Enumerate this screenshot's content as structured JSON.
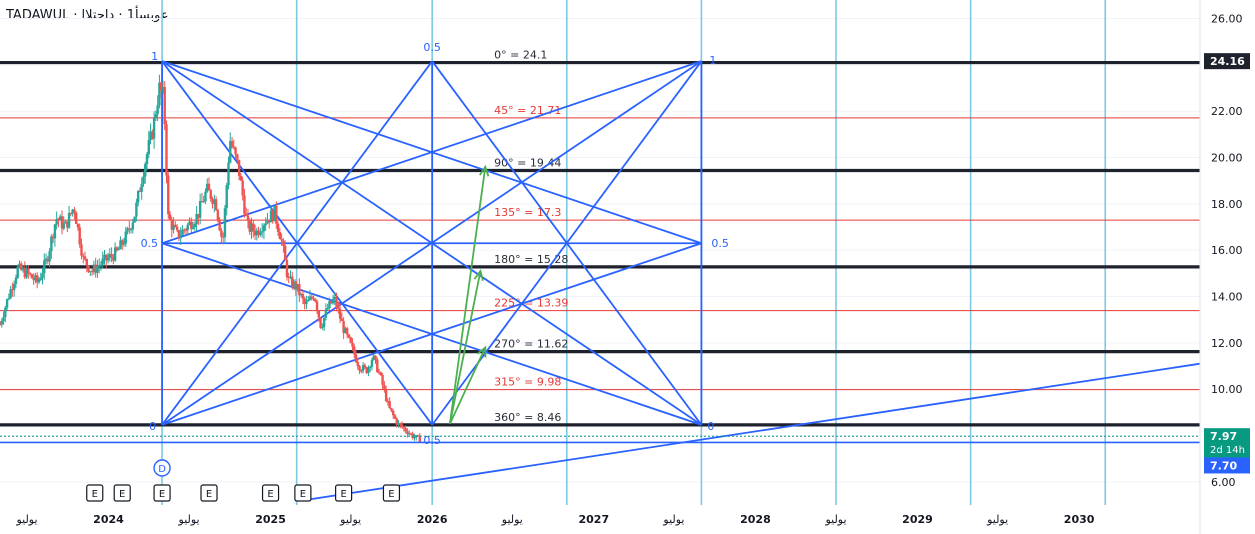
{
  "header": {
    "symbol": "TADAWUL",
    "separator": "·",
    "name_text": "عوبسأ1 · داحتلاا"
  },
  "colors": {
    "up": "#26a69a",
    "down": "#ef5350",
    "gann": "#2962ff",
    "fan": "#4caf50",
    "cycle": "#7ec8e3",
    "level_black": "#1e222d",
    "level_red": "#e53935",
    "last_price_bg": "#2962ff",
    "current_price_bg": "#089981"
  },
  "chart_data": {
    "type": "candlestick",
    "y_axis": {
      "range": [
        5.0,
        26.8
      ],
      "ticks": [
        "26.00",
        "24.00",
        "22.00",
        "20.00",
        "18.00",
        "16.00",
        "14.00",
        "12.00",
        "10.00",
        "8.00",
        "6.00"
      ],
      "tick_values": [
        26,
        24,
        22,
        20,
        18,
        16,
        14,
        12,
        10,
        8,
        6
      ]
    },
    "x_axis": {
      "range": [
        "2023-05-01",
        "2030-10-01"
      ],
      "labels": [
        {
          "text": "يوليو",
          "date": "2023-07-01"
        },
        {
          "text": "2024",
          "date": "2024-01-01"
        },
        {
          "text": "يوليو",
          "date": "2024-07-01"
        },
        {
          "text": "2025",
          "date": "2025-01-01"
        },
        {
          "text": "يوليو",
          "date": "2025-07-01"
        },
        {
          "text": "2026",
          "date": "2026-01-01"
        },
        {
          "text": "يوليو",
          "date": "2026-07-01"
        },
        {
          "text": "2027",
          "date": "2027-01-01"
        },
        {
          "text": "يوليو",
          "date": "2027-07-01"
        },
        {
          "text": "2028",
          "date": "2028-01-01"
        },
        {
          "text": "يوليو",
          "date": "2028-07-01"
        },
        {
          "text": "2029",
          "date": "2029-01-01"
        },
        {
          "text": "يوليو",
          "date": "2029-07-01"
        },
        {
          "text": "2030",
          "date": "2030-01-01"
        }
      ]
    },
    "price_path": [
      [
        "2023-05-01",
        12.8
      ],
      [
        "2023-05-20",
        14.0
      ],
      [
        "2023-06-10",
        15.2
      ],
      [
        "2023-07-01",
        15.0
      ],
      [
        "2023-07-25",
        14.6
      ],
      [
        "2023-08-15",
        15.6
      ],
      [
        "2023-09-05",
        17.4
      ],
      [
        "2023-09-25",
        17.0
      ],
      [
        "2023-10-15",
        17.9
      ],
      [
        "2023-11-05",
        15.6
      ],
      [
        "2023-11-25",
        15.1
      ],
      [
        "2023-12-20",
        15.5
      ],
      [
        "2024-01-20",
        15.9
      ],
      [
        "2024-02-10",
        16.6
      ],
      [
        "2024-03-01",
        17.6
      ],
      [
        "2024-03-20",
        19.5
      ],
      [
        "2024-04-10",
        21.2
      ],
      [
        "2024-04-25",
        23.0
      ],
      [
        "2024-05-05",
        22.6
      ],
      [
        "2024-05-15",
        17.4
      ],
      [
        "2024-06-05",
        16.6
      ],
      [
        "2024-06-25",
        17.0
      ],
      [
        "2024-07-20",
        17.5
      ],
      [
        "2024-08-10",
        18.6
      ],
      [
        "2024-08-30",
        18.1
      ],
      [
        "2024-09-15",
        16.3
      ],
      [
        "2024-10-01",
        20.8
      ],
      [
        "2024-10-20",
        19.6
      ],
      [
        "2024-11-10",
        17.0
      ],
      [
        "2024-12-01",
        16.8
      ],
      [
        "2024-12-20",
        17.3
      ],
      [
        "2025-01-10",
        17.6
      ],
      [
        "2025-01-25",
        16.5
      ],
      [
        "2025-02-10",
        14.7
      ],
      [
        "2025-03-01",
        14.4
      ],
      [
        "2025-03-20",
        13.6
      ],
      [
        "2025-04-10",
        14.1
      ],
      [
        "2025-04-25",
        12.7
      ],
      [
        "2025-05-10",
        13.5
      ],
      [
        "2025-05-25",
        13.9
      ],
      [
        "2025-06-15",
        12.6
      ],
      [
        "2025-07-05",
        11.7
      ],
      [
        "2025-07-20",
        11.0
      ],
      [
        "2025-08-05",
        10.8
      ],
      [
        "2025-08-20",
        11.4
      ],
      [
        "2025-09-05",
        10.6
      ],
      [
        "2025-09-25",
        9.2
      ],
      [
        "2025-10-15",
        8.5
      ],
      [
        "2025-11-05",
        8.2
      ],
      [
        "2025-11-20",
        7.95
      ],
      [
        "2025-12-05",
        7.8
      ]
    ],
    "price_levels": [
      {
        "label": "0° = 24.1",
        "value": 24.1,
        "color": "black",
        "bold": true
      },
      {
        "label": "45° = 21.71",
        "value": 21.71,
        "color": "red",
        "bold": false
      },
      {
        "label": "90° = 19.44",
        "value": 19.44,
        "color": "black",
        "bold": true
      },
      {
        "label": "135° = 17.3",
        "value": 17.3,
        "color": "red",
        "bold": false
      },
      {
        "label": "180° = 15.28",
        "value": 15.28,
        "color": "black",
        "bold": true
      },
      {
        "label": "225° = 13.39",
        "value": 13.39,
        "color": "red",
        "bold": false
      },
      {
        "label": "270° = 11.62",
        "value": 11.62,
        "color": "black",
        "bold": true
      },
      {
        "label": "315° = 9.98",
        "value": 9.98,
        "color": "red",
        "bold": false
      },
      {
        "label": "360° = 8.46",
        "value": 8.46,
        "color": "black",
        "bold": true
      }
    ],
    "gann_box": {
      "start": "2024-05-01",
      "end": "2027-09-01",
      "mid_time": "2026-01-01",
      "top": 24.16,
      "bottom": 8.46,
      "mid_price": 16.3,
      "labels": {
        "top_left": "1",
        "mid_left": "0.5",
        "bottom_left": "0",
        "top_mid": "0.5",
        "top_right": "1",
        "mid_right": "0.5",
        "bottom_right": "0",
        "bottom_mid": "0.5"
      }
    },
    "cycle_lines": [
      "2024-05-01",
      "2025-03-01",
      "2026-01-01",
      "2026-11-01",
      "2027-09-01",
      "2028-07-01",
      "2029-05-01",
      "2030-03-01"
    ],
    "trend_line": {
      "from": [
        "2025-03-15",
        5.2
      ],
      "to": [
        "2030-10-01",
        11.1
      ]
    },
    "fan_lines": [
      {
        "from": [
          "2026-02-10",
          8.5
        ],
        "to": [
          "2026-05-01",
          19.6
        ]
      },
      {
        "from": [
          "2026-02-10",
          8.5
        ],
        "to": [
          "2026-04-20",
          15.1
        ]
      },
      {
        "from": [
          "2026-02-10",
          8.5
        ],
        "to": [
          "2026-05-01",
          11.8
        ]
      }
    ],
    "markers": {
      "dividend": {
        "text": "D",
        "date": "2024-05-01"
      },
      "earnings_text": "E",
      "earnings_dates": [
        "2023-12-01",
        "2024-02-01",
        "2024-05-01",
        "2024-08-15",
        "2025-01-01",
        "2025-03-15",
        "2025-06-15",
        "2025-10-01"
      ]
    },
    "price_tags": [
      {
        "kind": "last",
        "text": "24.16",
        "value": 24.16
      },
      {
        "kind": "current",
        "text": "7.97",
        "sub": "2d 14h",
        "value": 7.97
      },
      {
        "kind": "blue",
        "text": "7.70",
        "value": 7.7
      }
    ]
  }
}
